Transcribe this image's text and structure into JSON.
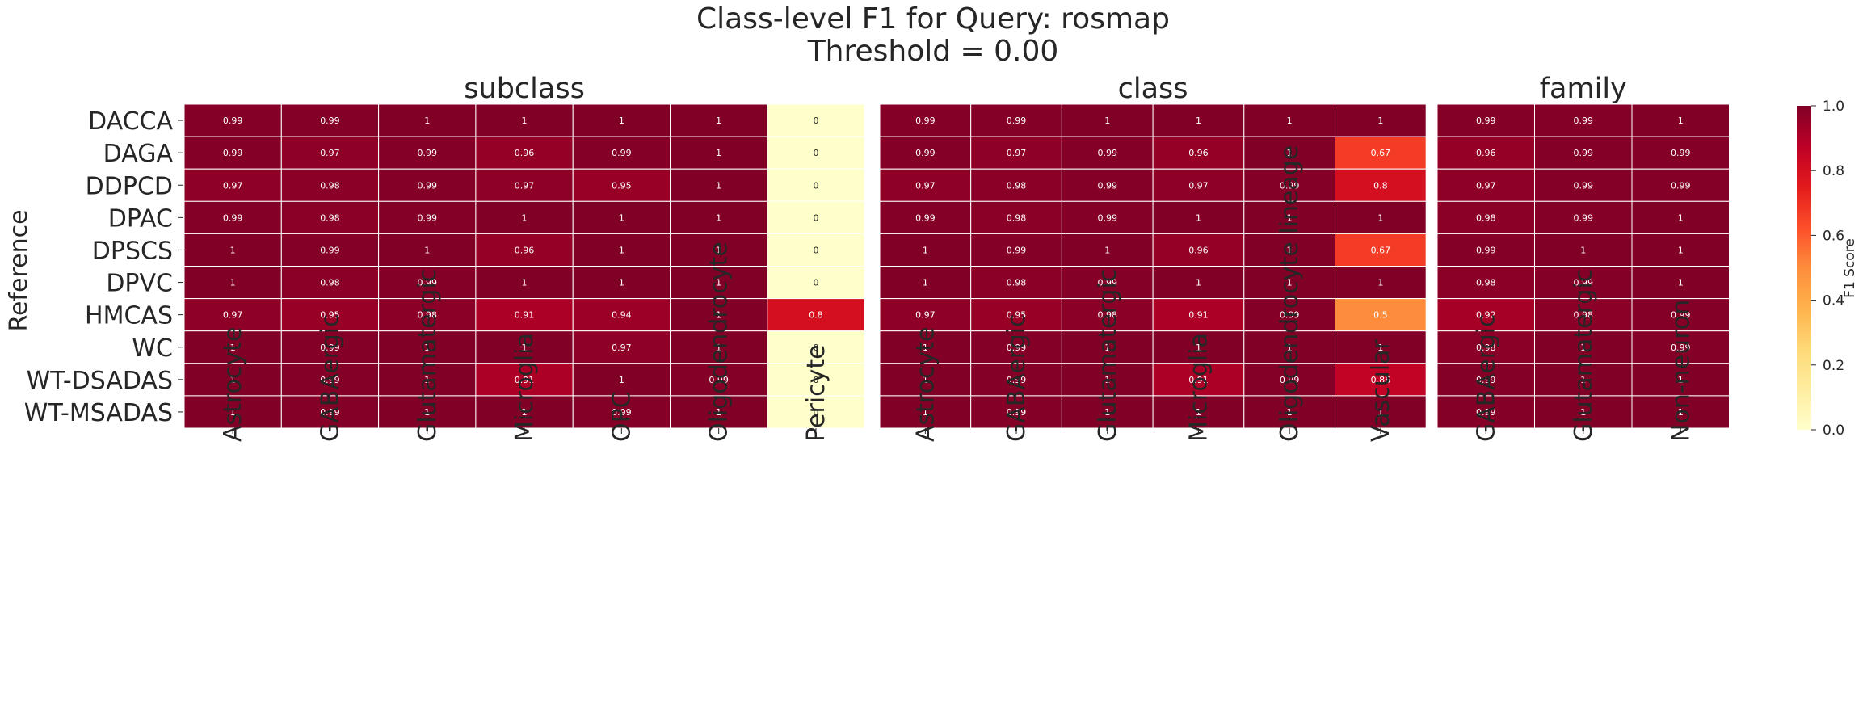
{
  "chart_data": {
    "type": "heatmap",
    "title": "Class-level F1 for Query: rosmap",
    "subtitle": "Threshold = 0.00",
    "ylabel": "Reference",
    "rows": [
      "DACCA",
      "DAGA",
      "DDPCD",
      "DPAC",
      "DPSCS",
      "DPVC",
      "HMCAS",
      "WC",
      "WT-DSADAS",
      "WT-MSADAS"
    ],
    "panels": [
      {
        "name": "subclass",
        "columns": [
          "Astrocyte",
          "GABAergic",
          "Glutamatergic",
          "Microglia",
          "OPC",
          "Oligodendrocyte",
          "Pericyte"
        ],
        "values": [
          [
            0.99,
            0.99,
            1,
            1,
            1,
            1,
            0
          ],
          [
            0.99,
            0.97,
            0.99,
            0.96,
            0.99,
            1,
            0
          ],
          [
            0.97,
            0.98,
            0.99,
            0.97,
            0.95,
            1,
            0
          ],
          [
            0.99,
            0.98,
            0.99,
            1,
            1,
            1,
            0
          ],
          [
            1,
            0.99,
            1,
            0.96,
            1,
            1,
            0
          ],
          [
            1,
            0.98,
            0.99,
            1,
            1,
            1,
            0
          ],
          [
            0.97,
            0.95,
            0.98,
            0.91,
            0.94,
            1,
            0.8
          ],
          [
            1,
            0.99,
            1,
            1,
            0.97,
            1,
            0
          ],
          [
            1,
            0.99,
            1,
            0.91,
            1,
            0.99,
            0
          ],
          [
            1,
            0.99,
            1,
            1,
            0.99,
            1,
            0
          ]
        ]
      },
      {
        "name": "class",
        "columns": [
          "Astrocyte",
          "GABAergic",
          "Glutamatergic",
          "Microglia",
          "Oligodendrocyte lineage",
          "Vascular"
        ],
        "values": [
          [
            0.99,
            0.99,
            1,
            1,
            1,
            1
          ],
          [
            0.99,
            0.97,
            0.99,
            0.96,
            1,
            0.67
          ],
          [
            0.97,
            0.98,
            0.99,
            0.97,
            0.99,
            0.8
          ],
          [
            0.99,
            0.98,
            0.99,
            1,
            1,
            1
          ],
          [
            1,
            0.99,
            1,
            0.96,
            1,
            0.67
          ],
          [
            1,
            0.98,
            0.99,
            1,
            1,
            1
          ],
          [
            0.97,
            0.95,
            0.98,
            0.91,
            0.99,
            0.5
          ],
          [
            1,
            0.99,
            1,
            1,
            1,
            1
          ],
          [
            1,
            0.99,
            1,
            0.91,
            0.99,
            0.86
          ],
          [
            1,
            0.99,
            1,
            1,
            1,
            1
          ]
        ]
      },
      {
        "name": "family",
        "columns": [
          "GABAergic",
          "Glutamatergic",
          "Non-neuron"
        ],
        "values": [
          [
            0.99,
            0.99,
            1
          ],
          [
            0.96,
            0.99,
            0.99
          ],
          [
            0.97,
            0.99,
            0.99
          ],
          [
            0.98,
            0.99,
            1
          ],
          [
            0.99,
            1,
            1
          ],
          [
            0.98,
            0.99,
            1
          ],
          [
            0.92,
            0.98,
            0.99
          ],
          [
            0.98,
            1,
            0.99
          ],
          [
            0.99,
            1,
            1
          ],
          [
            0.99,
            1,
            1
          ]
        ]
      }
    ],
    "colorbar": {
      "label": "F1 Score",
      "range": [
        0,
        1
      ],
      "ticks": [
        "0.0",
        "0.2",
        "0.4",
        "0.6",
        "0.8",
        "1.0"
      ],
      "colormap": "YlOrRd",
      "stops": [
        "#ffffcc",
        "#ffeda0",
        "#fed976",
        "#feb24c",
        "#fd8d3c",
        "#fc4e2a",
        "#e31a1c",
        "#bd0026",
        "#800026"
      ]
    }
  }
}
